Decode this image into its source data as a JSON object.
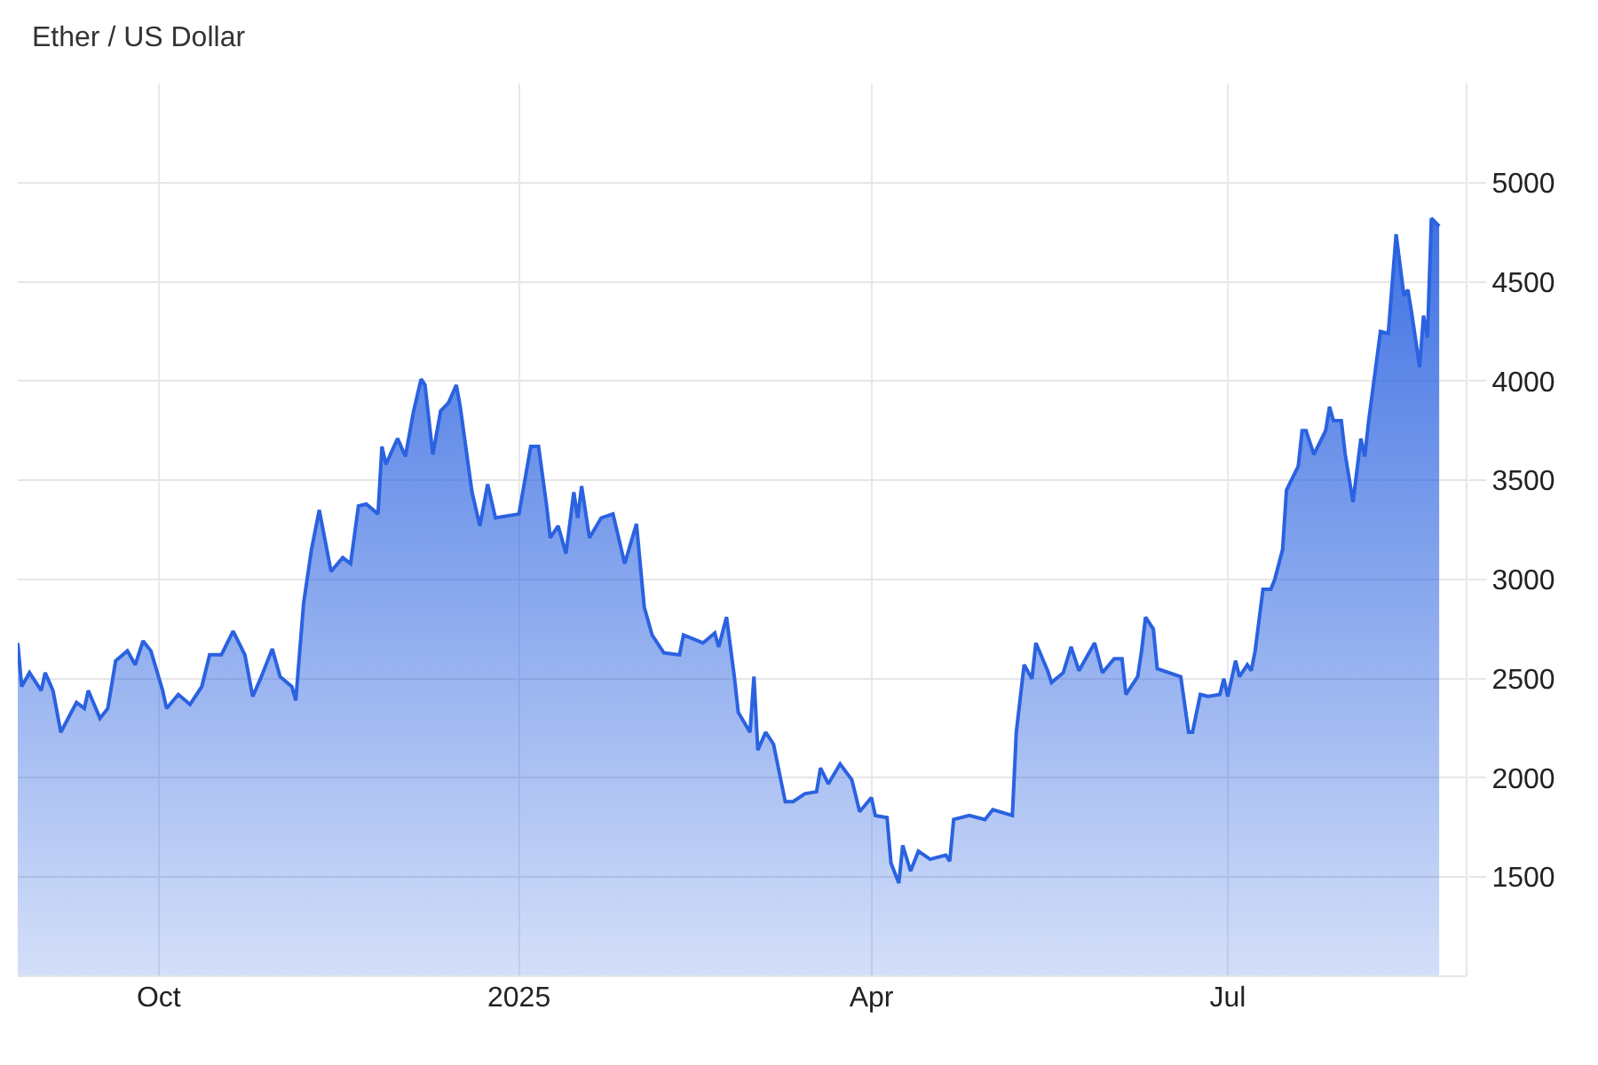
{
  "chart_data": {
    "type": "area",
    "title": "Ether / US Dollar",
    "x": [
      "2024-08-26",
      "2024-08-27",
      "2024-08-29",
      "2024-09-01",
      "2024-09-02",
      "2024-09-04",
      "2024-09-06",
      "2024-09-10",
      "2024-09-12",
      "2024-09-13",
      "2024-09-16",
      "2024-09-18",
      "2024-09-20",
      "2024-09-23",
      "2024-09-25",
      "2024-09-27",
      "2024-09-29",
      "2024-10-02",
      "2024-10-03",
      "2024-10-06",
      "2024-10-09",
      "2024-10-12",
      "2024-10-14",
      "2024-10-17",
      "2024-10-20",
      "2024-10-23",
      "2024-10-25",
      "2024-10-27",
      "2024-10-30",
      "2024-11-01",
      "2024-11-04",
      "2024-11-05",
      "2024-11-07",
      "2024-11-09",
      "2024-11-11",
      "2024-11-14",
      "2024-11-17",
      "2024-11-19",
      "2024-11-21",
      "2024-11-23",
      "2024-11-26",
      "2024-11-27",
      "2024-11-28",
      "2024-12-01",
      "2024-12-03",
      "2024-12-05",
      "2024-12-07",
      "2024-12-08",
      "2024-12-10",
      "2024-12-12",
      "2024-12-14",
      "2024-12-16",
      "2024-12-17",
      "2024-12-20",
      "2024-12-22",
      "2024-12-24",
      "2024-12-26",
      "2025-01-01",
      "2025-01-04",
      "2025-01-06",
      "2025-01-08",
      "2025-01-09",
      "2025-01-11",
      "2025-01-13",
      "2025-01-15",
      "2025-01-16",
      "2025-01-17",
      "2025-01-19",
      "2025-01-22",
      "2025-01-25",
      "2025-01-28",
      "2025-01-31",
      "2025-02-02",
      "2025-02-04",
      "2025-02-07",
      "2025-02-11",
      "2025-02-12",
      "2025-02-17",
      "2025-02-20",
      "2025-02-21",
      "2025-02-23",
      "2025-02-25",
      "2025-02-26",
      "2025-03-01",
      "2025-03-02",
      "2025-03-03",
      "2025-03-05",
      "2025-03-07",
      "2025-03-10",
      "2025-03-12",
      "2025-03-15",
      "2025-03-18",
      "2025-03-19",
      "2025-03-21",
      "2025-03-24",
      "2025-03-27",
      "2025-03-29",
      "2025-04-01",
      "2025-04-02",
      "2025-04-05",
      "2025-04-06",
      "2025-04-08",
      "2025-04-09",
      "2025-04-11",
      "2025-04-13",
      "2025-04-16",
      "2025-04-20",
      "2025-04-21",
      "2025-04-22",
      "2025-04-26",
      "2025-04-30",
      "2025-05-02",
      "2025-05-07",
      "2025-05-08",
      "2025-05-10",
      "2025-05-12",
      "2025-05-13",
      "2025-05-16",
      "2025-05-17",
      "2025-05-20",
      "2025-05-22",
      "2025-05-24",
      "2025-05-28",
      "2025-05-30",
      "2025-06-02",
      "2025-06-04",
      "2025-06-05",
      "2025-06-08",
      "2025-06-09",
      "2025-06-10",
      "2025-06-12",
      "2025-06-13",
      "2025-06-19",
      "2025-06-21",
      "2025-06-22",
      "2025-06-24",
      "2025-06-26",
      "2025-06-29",
      "2025-06-30",
      "2025-07-01",
      "2025-07-03",
      "2025-07-04",
      "2025-07-06",
      "2025-07-07",
      "2025-07-08",
      "2025-07-10",
      "2025-07-12",
      "2025-07-13",
      "2025-07-15",
      "2025-07-16",
      "2025-07-19",
      "2025-07-20",
      "2025-07-21",
      "2025-07-23",
      "2025-07-25",
      "2025-07-26",
      "2025-07-27",
      "2025-07-28",
      "2025-07-30",
      "2025-07-31",
      "2025-08-02",
      "2025-08-04",
      "2025-08-05",
      "2025-08-06",
      "2025-08-09",
      "2025-08-11",
      "2025-08-13",
      "2025-08-15",
      "2025-08-16",
      "2025-08-17",
      "2025-08-19",
      "2025-08-20",
      "2025-08-21",
      "2025-08-22",
      "2025-08-24"
    ],
    "series": [
      {
        "color": "#2a62e0",
        "values": [
          2680,
          2460,
          2530,
          2440,
          2530,
          2440,
          2230,
          2380,
          2350,
          2440,
          2300,
          2350,
          2590,
          2640,
          2570,
          2690,
          2640,
          2440,
          2350,
          2420,
          2370,
          2460,
          2620,
          2620,
          2740,
          2620,
          2410,
          2500,
          2650,
          2510,
          2460,
          2390,
          2880,
          3150,
          3350,
          3040,
          3110,
          3080,
          3370,
          3380,
          3330,
          3670,
          3580,
          3710,
          3620,
          3840,
          4010,
          3980,
          3630,
          3850,
          3890,
          3980,
          3870,
          3440,
          3270,
          3480,
          3310,
          3330,
          3670,
          3670,
          3380,
          3210,
          3270,
          3130,
          3440,
          3310,
          3470,
          3210,
          3310,
          3330,
          3080,
          3280,
          2860,
          2720,
          2630,
          2620,
          2720,
          2680,
          2730,
          2660,
          2810,
          2510,
          2330,
          2230,
          2510,
          2140,
          2230,
          2170,
          1880,
          1880,
          1920,
          1930,
          2050,
          1970,
          2070,
          1990,
          1830,
          1900,
          1810,
          1800,
          1570,
          1470,
          1660,
          1530,
          1630,
          1590,
          1610,
          1580,
          1790,
          1810,
          1790,
          1840,
          1810,
          2230,
          2570,
          2500,
          2680,
          2540,
          2480,
          2530,
          2660,
          2540,
          2680,
          2530,
          2600,
          2600,
          2420,
          2510,
          2640,
          2810,
          2750,
          2550,
          2510,
          2230,
          2230,
          2420,
          2410,
          2420,
          2500,
          2410,
          2590,
          2510,
          2570,
          2540,
          2640,
          2950,
          2950,
          3000,
          3150,
          3450,
          3570,
          3750,
          3750,
          3630,
          3710,
          3750,
          3870,
          3800,
          3800,
          3630,
          3390,
          3710,
          3620,
          3800,
          4250,
          4240,
          4740,
          4430,
          4460,
          4340,
          4070,
          4330,
          4220,
          4820,
          4780
        ]
      }
    ],
    "xlim": [
      "2024-08-26",
      "2025-08-31"
    ],
    "xticks": [
      {
        "value": "2024-10-01",
        "label": "Oct"
      },
      {
        "value": "2025-01-01",
        "label": "2025"
      },
      {
        "value": "2025-04-01",
        "label": "Apr"
      },
      {
        "value": "2025-07-01",
        "label": "Jul"
      }
    ],
    "ylim": [
      1000,
      5500
    ],
    "yticks": [
      1500,
      2000,
      2500,
      3000,
      3500,
      4000,
      4500,
      5000
    ],
    "grid": true
  }
}
